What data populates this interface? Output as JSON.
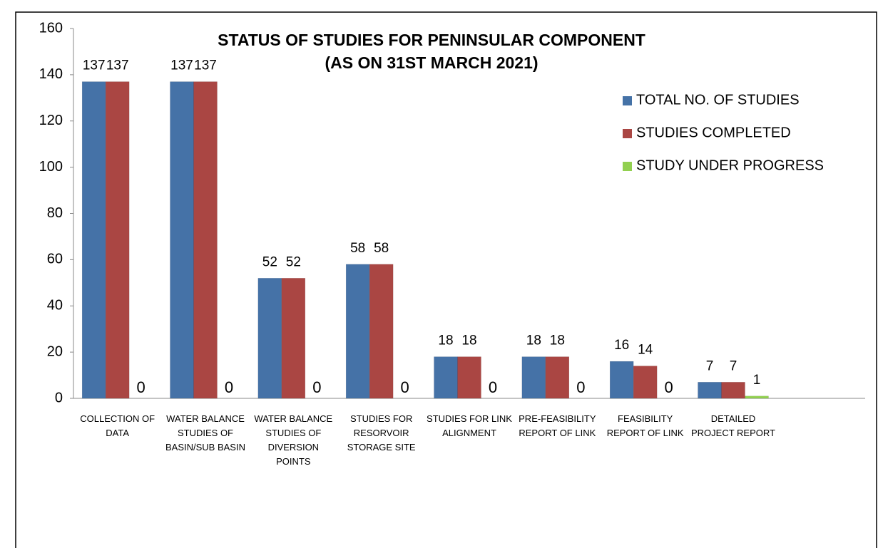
{
  "chart_data": {
    "type": "bar",
    "title": "STATUS OF STUDIES FOR PENINSULAR COMPONENT",
    "subtitle": "(AS ON 31ST MARCH 2021)",
    "categories": [
      "COLLECTION OF DATA",
      "WATER BALANCE STUDIES OF BASIN/SUB BASIN",
      "WATER BALANCE STUDIES OF DIVERSION POINTS",
      "STUDIES FOR RESORVOIR STORAGE SITE",
      "STUDIES FOR LINK ALIGNMENT",
      "PRE-FEASIBILITY REPORT OF LINK",
      "FEASIBILITY REPORT OF LINK",
      "DETAILED PROJECT REPORT",
      null
    ],
    "series": [
      {
        "name": "TOTAL NO. OF STUDIES",
        "color": "#4572a7",
        "values": [
          137,
          137,
          52,
          58,
          18,
          18,
          16,
          7,
          null
        ]
      },
      {
        "name": "STUDIES COMPLETED",
        "color": "#aa4643",
        "values": [
          137,
          137,
          52,
          58,
          18,
          18,
          14,
          7,
          null
        ]
      },
      {
        "name": "STUDY UNDER PROGRESS",
        "color": "#92d050",
        "values": [
          0,
          0,
          0,
          0,
          0,
          0,
          0,
          1,
          null
        ]
      }
    ],
    "ylim": [
      0,
      160
    ],
    "yticks": [
      0,
      20,
      40,
      60,
      80,
      100,
      120,
      140,
      160
    ],
    "legend": "upper right"
  }
}
